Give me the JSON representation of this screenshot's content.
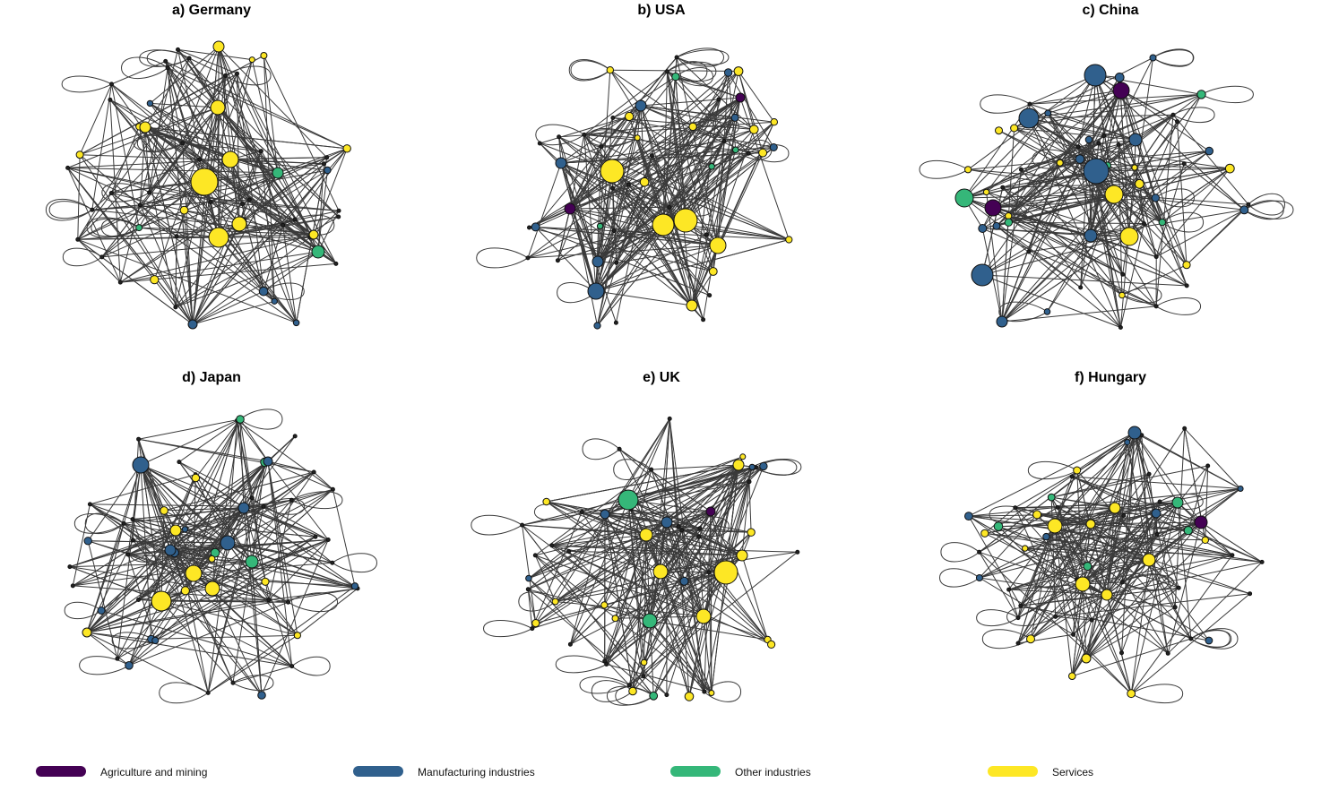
{
  "panels": [
    {
      "id": "germany",
      "title": "a) Germany"
    },
    {
      "id": "usa",
      "title": "b) USA"
    },
    {
      "id": "china",
      "title": "c) China"
    },
    {
      "id": "japan",
      "title": "d) Japan"
    },
    {
      "id": "uk",
      "title": "e) UK"
    },
    {
      "id": "hungary",
      "title": "f) Hungary"
    }
  ],
  "legend": [
    {
      "key": "agri",
      "label": "Agriculture and mining",
      "color": "#440154"
    },
    {
      "key": "manu",
      "label": "Manufacturing industries",
      "color": "#30608d"
    },
    {
      "key": "other",
      "label": "Other industries",
      "color": "#35b779"
    },
    {
      "key": "serv",
      "label": "Services",
      "color": "#fde725"
    }
  ]
}
